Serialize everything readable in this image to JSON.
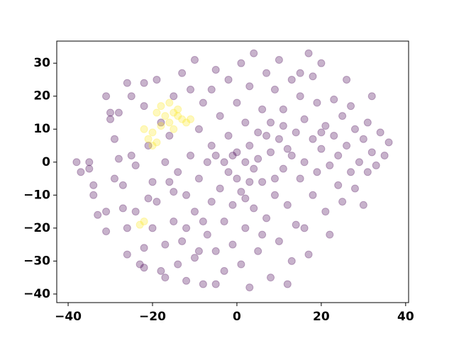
{
  "chart_data": {
    "type": "scatter",
    "xlim": [
      -42.7,
      40.7
    ],
    "ylim": [
      -42.6,
      36.7
    ],
    "xticks": [
      {
        "value": -40,
        "label": "−40"
      },
      {
        "value": -20,
        "label": "−20"
      },
      0,
      20,
      40
    ],
    "yticks": [
      {
        "value": -40,
        "label": "−40"
      },
      {
        "value": -30,
        "label": "−30"
      },
      {
        "value": -20,
        "label": "−20"
      },
      {
        "value": -10,
        "label": "−10"
      },
      0,
      10,
      20,
      30
    ],
    "grid": false,
    "series": [
      {
        "color": "#440154",
        "x": [
          -38,
          -37,
          -35,
          -35,
          -34,
          -34,
          -33,
          -31,
          -31,
          -31,
          -30,
          -29,
          -29,
          -30,
          -28,
          -27,
          -27,
          -26,
          -26,
          -26,
          -25,
          -25,
          -24,
          -24,
          -23,
          -22,
          -22,
          -22,
          -21,
          -21,
          -20,
          -19,
          -19,
          -18,
          -17,
          -17,
          -17,
          -16,
          -16,
          -15,
          -15,
          -14,
          -14,
          -13,
          -13,
          -12,
          -12,
          -11,
          -11,
          -10,
          -10,
          -10,
          -9,
          -9,
          -8,
          -8,
          -7,
          -7,
          -6,
          -6,
          -5,
          -5,
          -5,
          -4,
          -4,
          -3,
          -3,
          -3,
          -2,
          -2,
          -2,
          -1,
          -1,
          0,
          0,
          0,
          1,
          1,
          1,
          2,
          2,
          2,
          3,
          3,
          3,
          4,
          4,
          4,
          5,
          5,
          6,
          6,
          7,
          7,
          8,
          8,
          8,
          9,
          9,
          10,
          10,
          10,
          11,
          11,
          12,
          12,
          13,
          13,
          14,
          14,
          15,
          15,
          16,
          16,
          17,
          17,
          18,
          18,
          19,
          19,
          20,
          20,
          21,
          21,
          22,
          22,
          23,
          23,
          24,
          24,
          25,
          25,
          26,
          27,
          27,
          28,
          28,
          29,
          30,
          30,
          31,
          31,
          32,
          32,
          33,
          34,
          35,
          36,
          -20,
          -22,
          -18,
          -28,
          -8,
          -5,
          6,
          12,
          15,
          26,
          -12,
          -6,
          2,
          9,
          18,
          3,
          -1,
          5,
          7,
          11,
          13,
          20,
          -15,
          -9,
          16
        ],
        "values": [
          0,
          -3,
          -2,
          0,
          -7,
          -10,
          -16,
          -15,
          -21,
          20,
          13,
          -5,
          7,
          15,
          15,
          -7,
          -14,
          -28,
          -20,
          24,
          20,
          2,
          -1,
          -15,
          -31,
          -32,
          17,
          24,
          5,
          -11,
          -20,
          25,
          -12,
          -33,
          -35,
          -25,
          0,
          -6,
          8,
          -18,
          20,
          -31,
          -3,
          27,
          -24,
          -36,
          -10,
          22,
          2,
          -29,
          -15,
          31,
          -5,
          10,
          18,
          -37,
          -22,
          0,
          5,
          -12,
          28,
          -27,
          2,
          -8,
          14,
          -33,
          -18,
          0,
          25,
          -3,
          8,
          -13,
          -25,
          3,
          -5,
          18,
          -9,
          -31,
          30,
          0,
          12,
          -20,
          -38,
          5,
          23,
          -2,
          -14,
          33,
          9,
          -27,
          16,
          -6,
          -17,
          27,
          3,
          -35,
          12,
          -10,
          22,
          7,
          -24,
          31,
          -2,
          16,
          -13,
          4,
          -30,
          25,
          9,
          -19,
          -5,
          20,
          13,
          0,
          33,
          -28,
          -10,
          7,
          18,
          -3,
          4,
          30,
          -15,
          11,
          -22,
          -1,
          8,
          19,
          -7,
          2,
          14,
          -12,
          5,
          -3,
          17,
          10,
          -8,
          0,
          7,
          -13,
          12,
          -3,
          20,
          3,
          -1,
          9,
          2,
          6,
          -6,
          -26,
          12,
          1,
          -18,
          -37,
          -22,
          -37,
          27,
          25,
          -20,
          22,
          -11,
          -5,
          26,
          -6,
          2,
          1,
          8,
          11,
          2,
          9,
          -9,
          -27,
          -20
        ]
      },
      {
        "color": "#fde725",
        "x": [
          -19,
          -18,
          -17,
          -16,
          -15,
          -14,
          -13,
          -12,
          -16,
          -18,
          -15,
          -20,
          -21,
          -20,
          -22,
          -19,
          -23,
          -22,
          -14,
          -11
        ],
        "values": [
          15,
          17,
          14,
          18,
          15,
          16,
          13,
          12,
          12,
          11,
          10,
          9,
          7,
          5,
          10,
          6,
          -19,
          -18,
          14,
          13
        ]
      }
    ]
  }
}
